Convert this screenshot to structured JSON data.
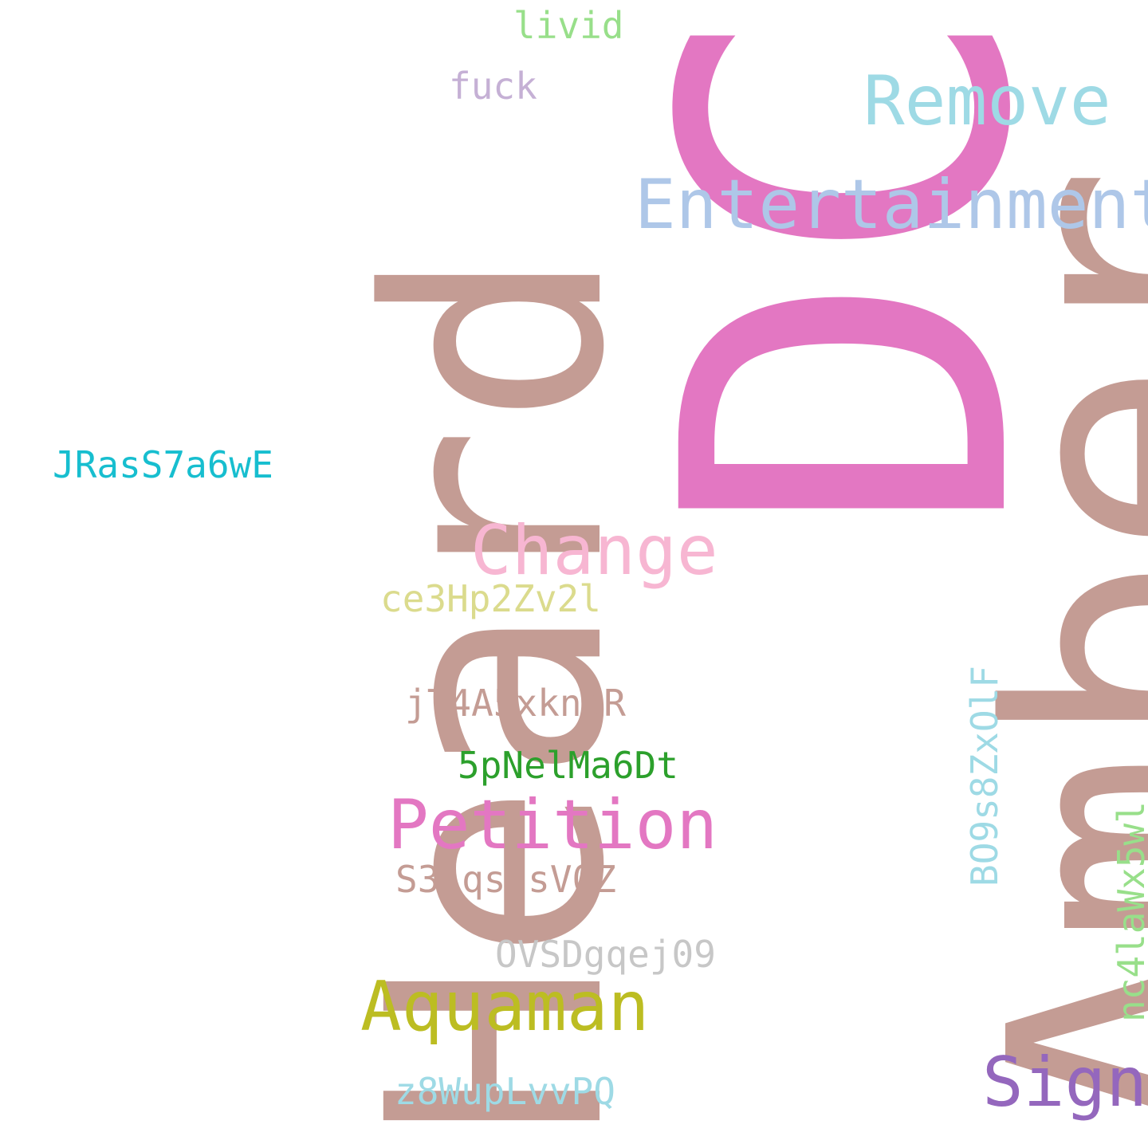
{
  "words": {
    "heard": "Heard",
    "amber": "Amber",
    "dc": "DC",
    "entertainment": "Entertainment",
    "remove": "Remove",
    "change": "Change",
    "petition": "Petition",
    "aquaman": "Aquaman",
    "sign": "Sign",
    "livid": "livid",
    "fuck": "fuck",
    "jrass": "JRasS7a6wE",
    "ce3hp": "ce3Hp2Zv2l",
    "jt4a5": "jT4A5xkngR",
    "pnel": "5pNelMa6Dt",
    "s3lq": "S3LqsjsV0Z",
    "ovsd": "OVSDgqej09",
    "z8wu": "z8WupLvvPQ",
    "bo9s": "BO9s8ZxOlF",
    "nc41": "nc4laWx5wl"
  },
  "colors": {
    "background": "#ffffff",
    "rose_brown": "#c49c94",
    "pink": "#e377c2",
    "light_blue": "#aec7e8",
    "cyan_light": "#9edae5",
    "light_pink": "#f7b6d2",
    "olive": "#bcbd22",
    "purple": "#9467bd",
    "light_green": "#98df8a",
    "lavender": "#c5b0d5",
    "teal": "#17becf",
    "khaki": "#dbdb8d",
    "green": "#2ca02c",
    "grey": "#c7c7c7"
  }
}
